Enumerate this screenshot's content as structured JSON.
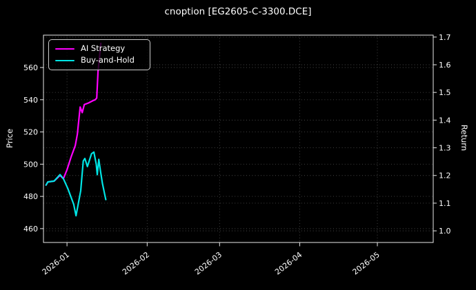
{
  "title": "cnoption [EG2605-C-3300.DCE]",
  "colors": {
    "background": "#000000",
    "foreground": "#ffffff",
    "grid": "#4a4a4a",
    "spine": "#eaeaea",
    "legend_border": "#cccccc",
    "ai_strategy": "#ff00ff",
    "buy_and_hold": "#00e5e5"
  },
  "legend": {
    "entries": [
      {
        "label": "AI Strategy",
        "color": "#ff00ff"
      },
      {
        "label": "Buy-and-Hold",
        "color": "#00e5e5"
      }
    ]
  },
  "chart_data": {
    "type": "line",
    "title": "cnoption [EG2605-C-3300.DCE]",
    "xlabel": "",
    "ylabel_left": "Price",
    "ylabel_right": "Return",
    "grid": true,
    "grid_style": "dotted",
    "legend_position": "upper-left",
    "x_axis": {
      "epoch": "2026-01-01",
      "tick_labels": [
        "2026-01",
        "2026-02",
        "2026-03",
        "2026-04",
        "2026-05"
      ],
      "tick_day_offsets": [
        0,
        31,
        59,
        90,
        120
      ],
      "lim_day_offsets": [
        -9.1,
        141.6
      ],
      "label_rotation_deg": -38
    },
    "left_axis": {
      "label": "Price",
      "ticks": [
        460,
        480,
        500,
        520,
        540,
        560
      ],
      "lim": [
        451.4,
        580.1
      ]
    },
    "right_axis": {
      "label": "Return",
      "ticks": [
        1.0,
        1.1,
        1.2,
        1.3,
        1.4,
        1.5,
        1.6,
        1.7
      ],
      "lim": [
        0.958,
        1.707
      ]
    },
    "series": [
      {
        "name": "AI Strategy",
        "color": "#ff00ff",
        "axis": "left",
        "points": [
          [
            -8.1,
            487
          ],
          [
            -7.4,
            489
          ],
          [
            -5.0,
            489.5
          ],
          [
            -2.7,
            493
          ],
          [
            -1.4,
            491
          ],
          [
            0.0,
            496.5
          ],
          [
            1.6,
            504.5
          ],
          [
            3.2,
            511.5
          ],
          [
            4.0,
            518.5
          ],
          [
            5.1,
            535.5
          ],
          [
            5.9,
            532
          ],
          [
            6.7,
            537
          ],
          [
            8.3,
            538
          ],
          [
            10.1,
            539.5
          ],
          [
            10.9,
            540
          ],
          [
            11.5,
            541
          ],
          [
            12.0,
            557.5
          ],
          [
            13.1,
            575
          ]
        ]
      },
      {
        "name": "Buy-and-Hold",
        "color": "#00e5e5",
        "axis": "left",
        "points": [
          [
            -8.1,
            487
          ],
          [
            -7.4,
            489
          ],
          [
            -5.0,
            489.5
          ],
          [
            -2.7,
            493.5
          ],
          [
            -1.4,
            491
          ],
          [
            0.3,
            485
          ],
          [
            2.6,
            475
          ],
          [
            3.5,
            468
          ],
          [
            5.3,
            483.5
          ],
          [
            6.3,
            502
          ],
          [
            6.9,
            503.5
          ],
          [
            7.9,
            498.5
          ],
          [
            9.5,
            506.5
          ],
          [
            10.4,
            507.5
          ],
          [
            11.3,
            500
          ],
          [
            11.7,
            493.5
          ],
          [
            12.3,
            503
          ],
          [
            13.0,
            495
          ],
          [
            13.7,
            488
          ],
          [
            14.6,
            481
          ],
          [
            15.0,
            478
          ]
        ]
      }
    ]
  }
}
